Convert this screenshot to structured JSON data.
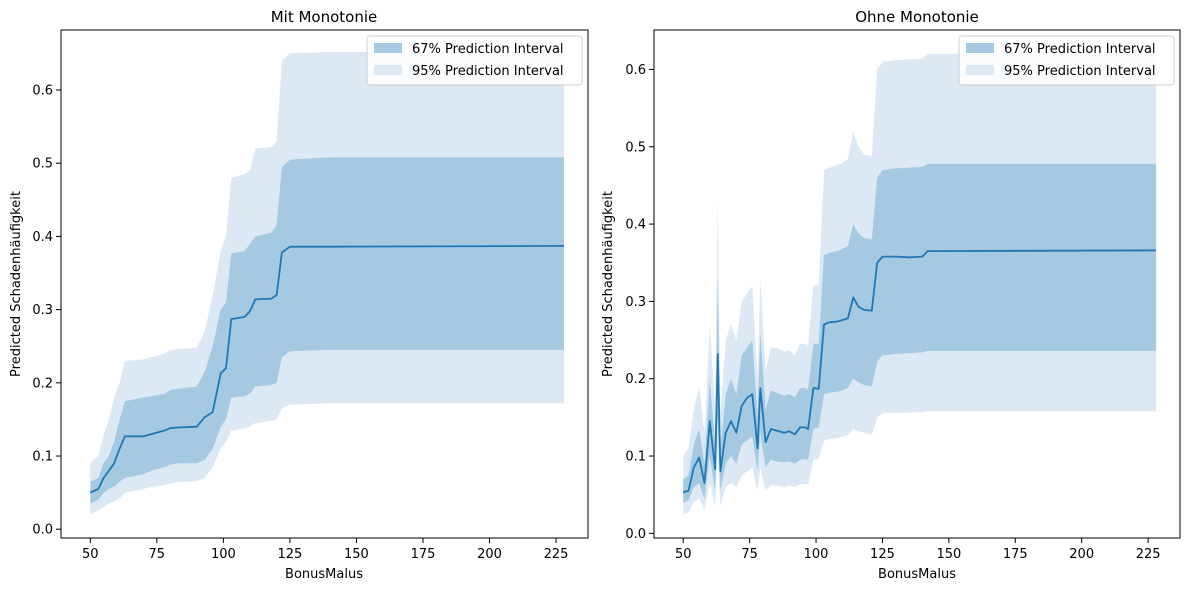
{
  "chart_data": [
    {
      "type": "area",
      "title": "Mit Monotonie",
      "xlabel": "BonusMalus",
      "ylabel": "Predicted Schadenhäufigkeit",
      "xlim": [
        39,
        237
      ],
      "ylim": [
        -0.012,
        0.682
      ],
      "xticks": [
        50,
        75,
        100,
        125,
        150,
        175,
        200,
        225
      ],
      "yticks": [
        0.0,
        0.1,
        0.2,
        0.3,
        0.4,
        0.5,
        0.6
      ],
      "ytick_labels": [
        "0.0",
        "0.1",
        "0.2",
        "0.3",
        "0.4",
        "0.5",
        "0.6"
      ],
      "grid": false,
      "legend_position": "top-right",
      "legend": [
        {
          "label": "67% Prediction Interval",
          "color": "#a6c9e2"
        },
        {
          "label": "95% Prediction Interval",
          "color": "#dce9f4"
        }
      ],
      "line_color": "#1f77b4",
      "x": [
        50,
        53,
        55,
        57,
        59,
        61,
        63,
        70,
        73,
        78,
        80,
        83,
        90,
        93,
        96,
        99,
        101,
        103,
        108,
        110,
        112,
        118,
        120,
        122,
        125,
        140,
        228
      ],
      "mean": [
        0.05,
        0.055,
        0.07,
        0.08,
        0.09,
        0.11,
        0.127,
        0.127,
        0.13,
        0.135,
        0.138,
        0.139,
        0.14,
        0.153,
        0.16,
        0.213,
        0.22,
        0.287,
        0.29,
        0.298,
        0.314,
        0.315,
        0.32,
        0.378,
        0.386,
        0.386,
        0.387
      ],
      "p67_lo": [
        0.035,
        0.04,
        0.05,
        0.055,
        0.058,
        0.065,
        0.07,
        0.075,
        0.08,
        0.085,
        0.088,
        0.09,
        0.09,
        0.095,
        0.11,
        0.14,
        0.15,
        0.18,
        0.182,
        0.185,
        0.195,
        0.197,
        0.2,
        0.235,
        0.243,
        0.245,
        0.245
      ],
      "p67_hi": [
        0.065,
        0.07,
        0.09,
        0.1,
        0.12,
        0.15,
        0.175,
        0.18,
        0.182,
        0.185,
        0.19,
        0.192,
        0.195,
        0.215,
        0.25,
        0.3,
        0.31,
        0.377,
        0.38,
        0.39,
        0.4,
        0.405,
        0.415,
        0.495,
        0.505,
        0.508,
        0.508
      ],
      "p95_lo": [
        0.02,
        0.025,
        0.03,
        0.035,
        0.038,
        0.042,
        0.05,
        0.055,
        0.058,
        0.06,
        0.062,
        0.065,
        0.065,
        0.07,
        0.085,
        0.11,
        0.12,
        0.135,
        0.138,
        0.14,
        0.145,
        0.148,
        0.15,
        0.165,
        0.17,
        0.172,
        0.172
      ],
      "p95_hi": [
        0.09,
        0.1,
        0.13,
        0.15,
        0.18,
        0.2,
        0.23,
        0.232,
        0.235,
        0.24,
        0.245,
        0.246,
        0.248,
        0.27,
        0.32,
        0.38,
        0.4,
        0.48,
        0.485,
        0.49,
        0.52,
        0.522,
        0.53,
        0.64,
        0.65,
        0.652,
        0.652
      ]
    },
    {
      "type": "area",
      "title": "Ohne Monotonie",
      "xlabel": "BonusMalus",
      "ylabel": "Predicted Schadenhäufigkeit",
      "xlim": [
        39,
        237
      ],
      "ylim": [
        -0.006,
        0.651
      ],
      "xticks": [
        50,
        75,
        100,
        125,
        150,
        175,
        200,
        225
      ],
      "yticks": [
        0.0,
        0.1,
        0.2,
        0.3,
        0.4,
        0.5,
        0.6
      ],
      "ytick_labels": [
        "0.0",
        "0.1",
        "0.2",
        "0.3",
        "0.4",
        "0.5",
        "0.6"
      ],
      "grid": false,
      "legend_position": "top-right",
      "legend": [
        {
          "label": "67% Prediction Interval",
          "color": "#a6c9e2"
        },
        {
          "label": "95% Prediction Interval",
          "color": "#dce9f4"
        }
      ],
      "line_color": "#1f77b4",
      "x": [
        50,
        52,
        54,
        56,
        58,
        60,
        62,
        63,
        64,
        66,
        68,
        70,
        72,
        74,
        76,
        78,
        79,
        81,
        83,
        85,
        88,
        90,
        92,
        94,
        96,
        97,
        99,
        101,
        103,
        105,
        108,
        110,
        112,
        114,
        116,
        118,
        121,
        123,
        125,
        130,
        135,
        140,
        142,
        228
      ],
      "mean": [
        0.053,
        0.055,
        0.085,
        0.098,
        0.065,
        0.145,
        0.083,
        0.232,
        0.08,
        0.13,
        0.145,
        0.13,
        0.165,
        0.175,
        0.18,
        0.11,
        0.188,
        0.118,
        0.135,
        0.133,
        0.13,
        0.132,
        0.128,
        0.137,
        0.137,
        0.135,
        0.188,
        0.187,
        0.27,
        0.273,
        0.274,
        0.276,
        0.278,
        0.305,
        0.293,
        0.289,
        0.288,
        0.35,
        0.358,
        0.358,
        0.357,
        0.358,
        0.365,
        0.366
      ],
      "p67_lo": [
        0.04,
        0.042,
        0.06,
        0.065,
        0.045,
        0.1,
        0.055,
        0.15,
        0.055,
        0.09,
        0.1,
        0.09,
        0.115,
        0.12,
        0.125,
        0.08,
        0.13,
        0.085,
        0.095,
        0.093,
        0.092,
        0.093,
        0.09,
        0.095,
        0.096,
        0.095,
        0.135,
        0.137,
        0.18,
        0.182,
        0.183,
        0.185,
        0.188,
        0.2,
        0.195,
        0.192,
        0.19,
        0.222,
        0.23,
        0.232,
        0.233,
        0.234,
        0.236,
        0.236
      ],
      "p67_hi": [
        0.07,
        0.075,
        0.115,
        0.135,
        0.09,
        0.2,
        0.115,
        0.33,
        0.11,
        0.18,
        0.2,
        0.18,
        0.23,
        0.24,
        0.25,
        0.15,
        0.26,
        0.16,
        0.185,
        0.182,
        0.178,
        0.18,
        0.176,
        0.188,
        0.188,
        0.186,
        0.245,
        0.245,
        0.36,
        0.363,
        0.365,
        0.368,
        0.372,
        0.4,
        0.388,
        0.382,
        0.38,
        0.46,
        0.47,
        0.472,
        0.473,
        0.474,
        0.478,
        0.478
      ],
      "p95_lo": [
        0.025,
        0.027,
        0.04,
        0.045,
        0.03,
        0.065,
        0.035,
        0.1,
        0.035,
        0.06,
        0.065,
        0.06,
        0.075,
        0.08,
        0.085,
        0.055,
        0.085,
        0.055,
        0.062,
        0.062,
        0.06,
        0.062,
        0.06,
        0.063,
        0.064,
        0.063,
        0.095,
        0.096,
        0.12,
        0.122,
        0.123,
        0.125,
        0.127,
        0.135,
        0.132,
        0.13,
        0.128,
        0.15,
        0.155,
        0.156,
        0.156,
        0.157,
        0.158,
        0.158
      ],
      "p95_hi": [
        0.1,
        0.11,
        0.16,
        0.19,
        0.13,
        0.27,
        0.16,
        0.43,
        0.155,
        0.25,
        0.27,
        0.25,
        0.3,
        0.31,
        0.32,
        0.2,
        0.33,
        0.21,
        0.24,
        0.24,
        0.235,
        0.237,
        0.23,
        0.245,
        0.245,
        0.243,
        0.32,
        0.322,
        0.47,
        0.473,
        0.476,
        0.479,
        0.484,
        0.52,
        0.5,
        0.49,
        0.488,
        0.6,
        0.61,
        0.612,
        0.613,
        0.614,
        0.62,
        0.62
      ]
    }
  ]
}
